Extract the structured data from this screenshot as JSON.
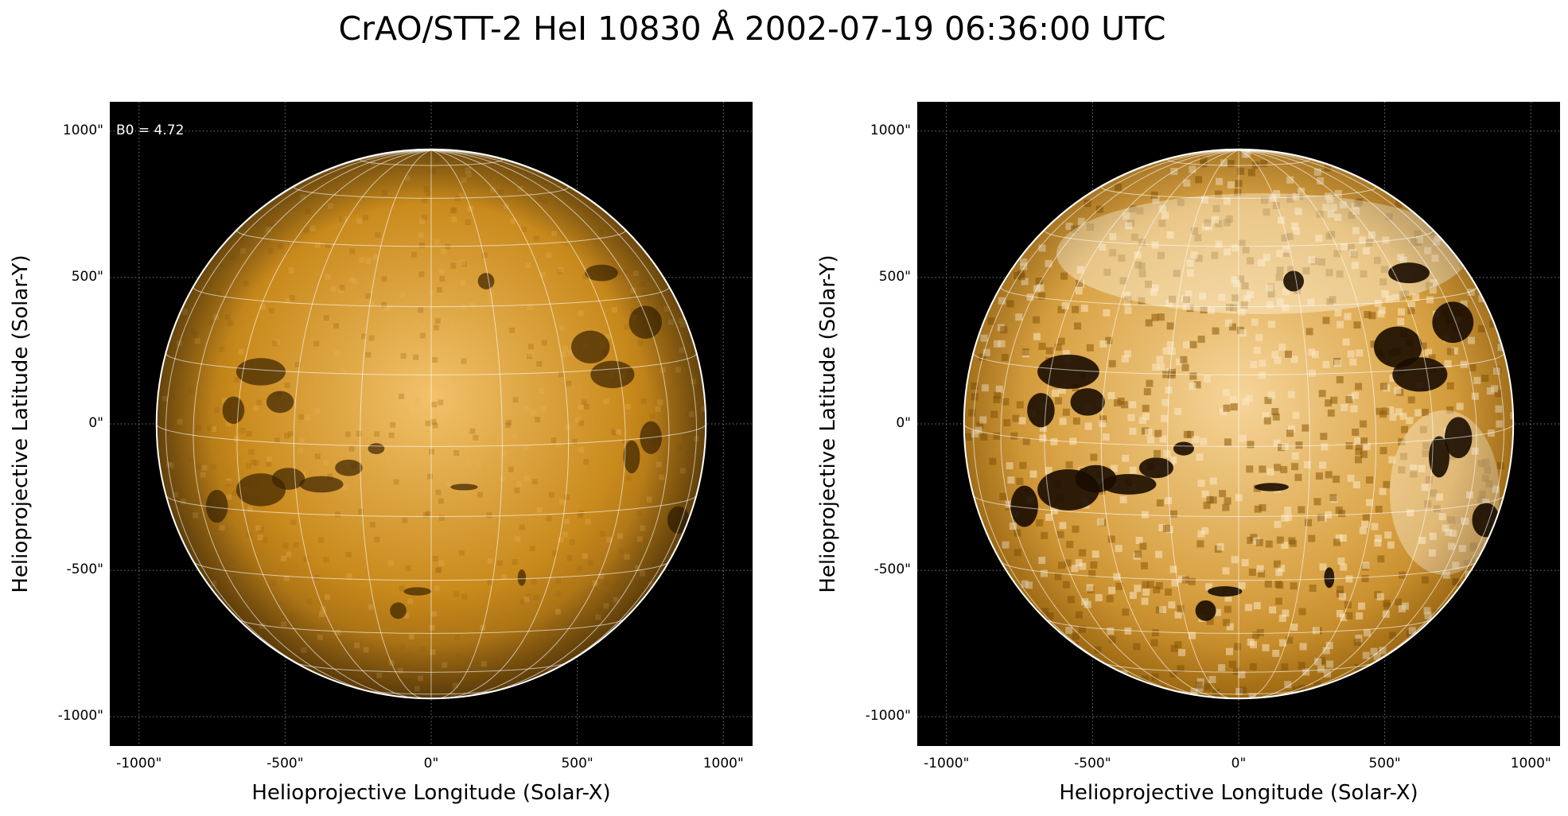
{
  "figure": {
    "title": "CrAO/STT-2 HeI 10830 Å 2002-07-19 06:36:00 UTC"
  },
  "axes": {
    "xlabel": "Helioprojective Longitude (Solar-X)",
    "ylabel": "Helioprojective Latitude (Solar-Y)",
    "xticks": [
      "-1000\"",
      "-500\"",
      "0\"",
      "500\"",
      "1000\""
    ],
    "yticks": [
      "1000\"",
      "500\"",
      "0\"",
      "-500\"",
      "-1000\""
    ],
    "tick_values": [
      -1000,
      -500,
      0,
      500,
      1000
    ],
    "range_arcsec": [
      -1100,
      1100
    ]
  },
  "panels": [
    {
      "id": "left",
      "annotation": "B0 = 4.72",
      "style": "normal-contrast"
    },
    {
      "id": "right",
      "annotation": "",
      "style": "enhanced-contrast"
    }
  ],
  "colors": {
    "background": "#000000",
    "disk_base": "#c98a1c",
    "disk_highlight": "#f2c26a",
    "grid": "#ffffff",
    "limb": "#ffffff"
  }
}
